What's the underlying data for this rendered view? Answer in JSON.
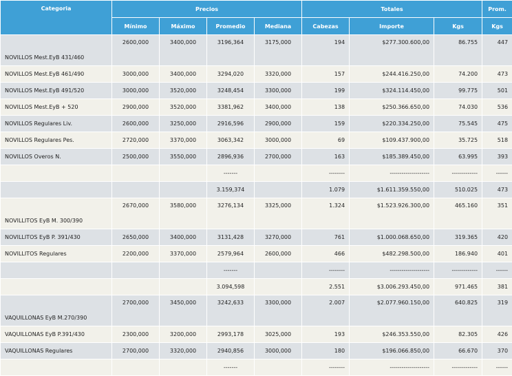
{
  "headers": {
    "categoria": "Categoria",
    "precios": "Precios",
    "totales": "Totales",
    "prom": "Prom.",
    "minimo": "Mínimo",
    "maximo": "Máximo",
    "promedio": "Promedio",
    "mediana": "Mediana",
    "cabezas": "Cabezas",
    "importe": "Importe",
    "kgs": "Kgs",
    "prom_kgs": "Kgs"
  },
  "rows": [
    {
      "cat": "NOVILLOS Mest.EyB 431/460",
      "min": "2600,000",
      "max": "3400,000",
      "prom": "3196,364",
      "med": "3175,000",
      "cab": "194",
      "imp": "$277.300.600,00",
      "kgs": "86.755",
      "pkg": "447"
    },
    {
      "cat": "NOVILLOS Mest.EyB 461/490",
      "min": "3000,000",
      "max": "3400,000",
      "prom": "3294,020",
      "med": "3320,000",
      "cab": "157",
      "imp": "$244.416.250,00",
      "kgs": "74.200",
      "pkg": "473"
    },
    {
      "cat": "NOVILLOS Mest.EyB 491/520",
      "min": "3000,000",
      "max": "3520,000",
      "prom": "3248,454",
      "med": "3300,000",
      "cab": "199",
      "imp": "$324.114.450,00",
      "kgs": "99.775",
      "pkg": "501"
    },
    {
      "cat": "NOVILLOS Mest.EyB + 520",
      "min": "2900,000",
      "max": "3520,000",
      "prom": "3381,962",
      "med": "3400,000",
      "cab": "138",
      "imp": "$250.366.650,00",
      "kgs": "74.030",
      "pkg": "536"
    },
    {
      "cat": "NOVILLOS Regulares Liv.",
      "min": "2600,000",
      "max": "3250,000",
      "prom": "2916,596",
      "med": "2900,000",
      "cab": "159",
      "imp": "$220.334.250,00",
      "kgs": "75.545",
      "pkg": "475"
    },
    {
      "cat": "NOVILLOS Regulares Pes.",
      "min": "2720,000",
      "max": "3370,000",
      "prom": "3063,342",
      "med": "3000,000",
      "cab": "69",
      "imp": "$109.437.900,00",
      "kgs": "35.725",
      "pkg": "518"
    },
    {
      "cat": "NOVILLOS Overos N.",
      "min": "2500,000",
      "max": "3550,000",
      "prom": "2896,936",
      "med": "2700,000",
      "cab": "163",
      "imp": "$185.389.450,00",
      "kgs": "63.995",
      "pkg": "393"
    },
    {
      "cat": "",
      "min": "",
      "max": "",
      "prom": "-------",
      "med": "",
      "cab": "--------",
      "imp": "--------------------",
      "kgs": "-------------",
      "pkg": "------"
    },
    {
      "cat": "",
      "min": "",
      "max": "",
      "prom": "3.159,374",
      "med": "",
      "cab": "1.079",
      "imp": "$1.611.359.550,00",
      "kgs": "510.025",
      "pkg": "473"
    },
    {
      "cat": "NOVILLITOS EyB M. 300/390",
      "min": "2670,000",
      "max": "3580,000",
      "prom": "3276,134",
      "med": "3325,000",
      "cab": "1.324",
      "imp": "$1.523.926.300,00",
      "kgs": "465.160",
      "pkg": "351"
    },
    {
      "cat": "NOVILLITOS EyB P. 391/430",
      "min": "2650,000",
      "max": "3400,000",
      "prom": "3131,428",
      "med": "3270,000",
      "cab": "761",
      "imp": "$1.000.068.650,00",
      "kgs": "319.365",
      "pkg": "420"
    },
    {
      "cat": "NOVILLITOS Regulares",
      "min": "2200,000",
      "max": "3370,000",
      "prom": "2579,964",
      "med": "2600,000",
      "cab": "466",
      "imp": "$482.298.500,00",
      "kgs": "186.940",
      "pkg": "401"
    },
    {
      "cat": "",
      "min": "",
      "max": "",
      "prom": "-------",
      "med": "",
      "cab": "--------",
      "imp": "--------------------",
      "kgs": "-------------",
      "pkg": "------"
    },
    {
      "cat": "",
      "min": "",
      "max": "",
      "prom": "3.094,598",
      "med": "",
      "cab": "2.551",
      "imp": "$3.006.293.450,00",
      "kgs": "971.465",
      "pkg": "381"
    },
    {
      "cat": "VAQUILLONAS EyB M.270/390",
      "min": "2700,000",
      "max": "3450,000",
      "prom": "3242,633",
      "med": "3300,000",
      "cab": "2.007",
      "imp": "$2.077.960.150,00",
      "kgs": "640.825",
      "pkg": "319"
    },
    {
      "cat": "VAQUILLONAS EyB P.391/430",
      "min": "2300,000",
      "max": "3200,000",
      "prom": "2993,178",
      "med": "3025,000",
      "cab": "193",
      "imp": "$246.353.550,00",
      "kgs": "82.305",
      "pkg": "426"
    },
    {
      "cat": "VAQUILLONAS Regulares",
      "min": "2700,000",
      "max": "3320,000",
      "prom": "2940,856",
      "med": "3000,000",
      "cab": "180",
      "imp": "$196.066.850,00",
      "kgs": "66.670",
      "pkg": "370"
    },
    {
      "cat": "",
      "min": "",
      "max": "",
      "prom": "-------",
      "med": "",
      "cab": "--------",
      "imp": "--------------------",
      "kgs": "-------------",
      "pkg": "------"
    }
  ]
}
